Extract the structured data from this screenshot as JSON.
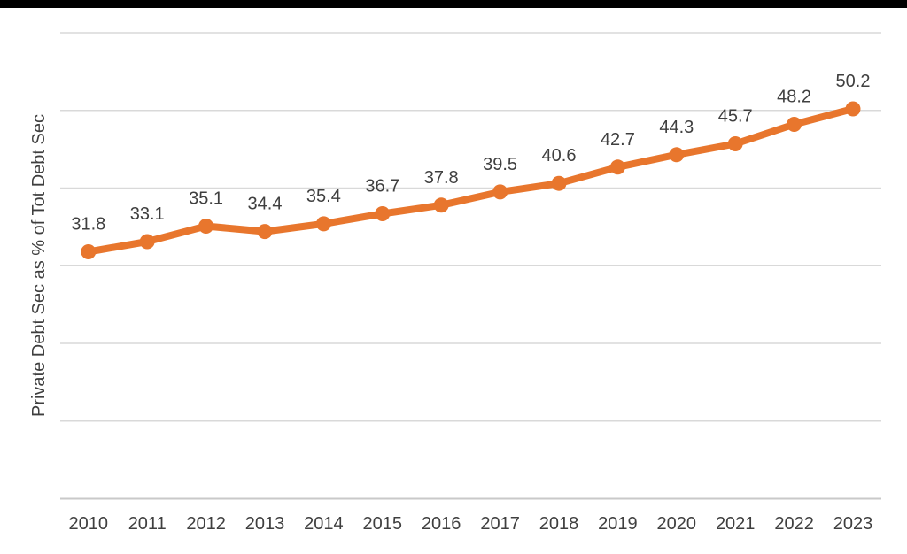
{
  "top_bar": {
    "color": "#000000"
  },
  "chart_data": {
    "type": "line",
    "title": "",
    "xlabel": "",
    "ylabel": "Private Debt Sec as % of Tot Debt Sec",
    "categories": [
      "2010",
      "2011",
      "2012",
      "2013",
      "2014",
      "2015",
      "2016",
      "2017",
      "2018",
      "2019",
      "2020",
      "2021",
      "2022",
      "2023"
    ],
    "series": [
      {
        "name": "Private Debt Sec as % of Tot Debt Sec",
        "values": [
          31.8,
          33.1,
          35.1,
          34.4,
          35.4,
          36.7,
          37.8,
          39.5,
          40.6,
          42.7,
          44.3,
          45.7,
          48.2,
          50.2
        ]
      }
    ],
    "data_labels": [
      "31.8",
      "33.1",
      "35.1",
      "34.4",
      "35.4",
      "36.7",
      "37.8",
      "39.5",
      "40.6",
      "42.7",
      "44.3",
      "45.7",
      "48.2",
      "50.2"
    ],
    "ylim": [
      0,
      60
    ],
    "gridline_step": 10,
    "grid": "horizontal",
    "legend": "none",
    "y_tick_labels_visible": false,
    "marker": "circle",
    "colors": {
      "line": "#E8762D",
      "gridline": "#D9D9D9",
      "axis_line": "#C9C9C9",
      "text": "#3F3F3F"
    }
  }
}
